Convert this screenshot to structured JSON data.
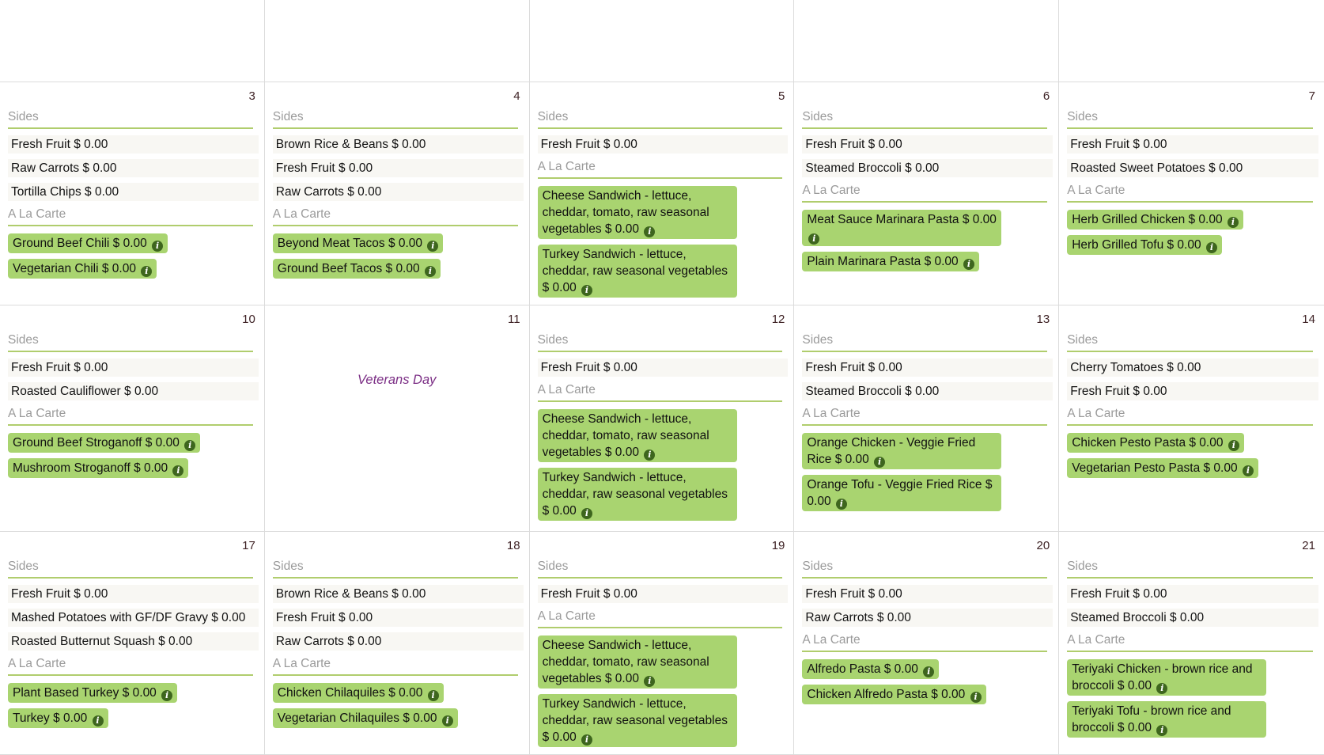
{
  "labels": {
    "sides_header": "Sides",
    "a_la_carte_header": "A La Carte",
    "info_icon_glyph": "i"
  },
  "colors": {
    "grid_line": "#dbdbdb",
    "day_number": "#3f2326",
    "section_header_text": "#9b9b9b",
    "section_underline_green": "#b0cd6d",
    "side_item_background": "#f8f7f3",
    "a_la_carte_pill_green": "#a9d470",
    "info_icon_green": "#3e661e",
    "holiday_text_purple": "#7b2e85"
  },
  "calendar": {
    "leading_empty_cells": 5,
    "weeks": [
      {
        "days": [
          {
            "number": "3",
            "sides": [
              {
                "name": "Fresh Fruit",
                "price": "$ 0.00"
              },
              {
                "name": "Raw Carrots",
                "price": "$ 0.00"
              },
              {
                "name": "Tortilla Chips",
                "price": "$ 0.00"
              }
            ],
            "a_la_carte": [
              {
                "name": "Ground Beef Chili",
                "price": "$ 0.00"
              },
              {
                "name": "Vegetarian Chili",
                "price": "$ 0.00"
              }
            ]
          },
          {
            "number": "4",
            "sides": [
              {
                "name": "Brown Rice & Beans",
                "price": "$ 0.00"
              },
              {
                "name": "Fresh Fruit",
                "price": "$ 0.00"
              },
              {
                "name": "Raw Carrots",
                "price": "$ 0.00"
              }
            ],
            "a_la_carte": [
              {
                "name": "Beyond Meat Tacos",
                "price": "$ 0.00"
              },
              {
                "name": "Ground Beef Tacos",
                "price": "$ 0.00"
              }
            ]
          },
          {
            "number": "5",
            "sides": [
              {
                "name": "Fresh Fruit",
                "price": "$ 0.00"
              }
            ],
            "a_la_carte": [
              {
                "name": "Cheese Sandwich - lettuce, cheddar, tomato, raw seasonal vegetables",
                "price": "$ 0.00"
              },
              {
                "name": "Turkey Sandwich - lettuce, cheddar, raw seasonal vegetables",
                "price": "$ 0.00"
              }
            ]
          },
          {
            "number": "6",
            "sides": [
              {
                "name": "Fresh Fruit",
                "price": "$ 0.00"
              },
              {
                "name": "Steamed Broccoli",
                "price": "$ 0.00"
              }
            ],
            "a_la_carte": [
              {
                "name": "Meat Sauce Marinara Pasta",
                "price": "$ 0.00"
              },
              {
                "name": "Plain Marinara Pasta",
                "price": "$ 0.00"
              }
            ]
          },
          {
            "number": "7",
            "sides": [
              {
                "name": "Fresh Fruit",
                "price": "$ 0.00"
              },
              {
                "name": "Roasted Sweet Potatoes",
                "price": "$ 0.00"
              }
            ],
            "a_la_carte": [
              {
                "name": "Herb Grilled Chicken",
                "price": "$ 0.00"
              },
              {
                "name": "Herb Grilled Tofu",
                "price": "$ 0.00"
              }
            ]
          }
        ]
      },
      {
        "days": [
          {
            "number": "10",
            "sides": [
              {
                "name": "Fresh Fruit",
                "price": "$ 0.00"
              },
              {
                "name": "Roasted Cauliflower",
                "price": "$ 0.00"
              }
            ],
            "a_la_carte": [
              {
                "name": "Ground Beef Stroganoff",
                "price": "$ 0.00"
              },
              {
                "name": "Mushroom Stroganoff",
                "price": "$ 0.00"
              }
            ]
          },
          {
            "number": "11",
            "holiday": "Veterans Day"
          },
          {
            "number": "12",
            "sides": [
              {
                "name": "Fresh Fruit",
                "price": "$ 0.00"
              }
            ],
            "a_la_carte": [
              {
                "name": "Cheese Sandwich - lettuce, cheddar, tomato, raw seasonal vegetables",
                "price": "$ 0.00"
              },
              {
                "name": "Turkey Sandwich - lettuce, cheddar, raw seasonal vegetables",
                "price": "$ 0.00"
              }
            ]
          },
          {
            "number": "13",
            "sides": [
              {
                "name": "Fresh Fruit",
                "price": "$ 0.00"
              },
              {
                "name": "Steamed Broccoli",
                "price": "$ 0.00"
              }
            ],
            "a_la_carte": [
              {
                "name": "Orange Chicken - Veggie Fried Rice",
                "price": "$ 0.00"
              },
              {
                "name": "Orange Tofu - Veggie Fried Rice",
                "price": "$ 0.00"
              }
            ]
          },
          {
            "number": "14",
            "sides": [
              {
                "name": "Cherry Tomatoes",
                "price": "$ 0.00"
              },
              {
                "name": "Fresh Fruit",
                "price": "$ 0.00"
              }
            ],
            "a_la_carte": [
              {
                "name": "Chicken Pesto Pasta",
                "price": "$ 0.00"
              },
              {
                "name": "Vegetarian Pesto Pasta",
                "price": "$ 0.00"
              }
            ]
          }
        ]
      },
      {
        "days": [
          {
            "number": "17",
            "sides": [
              {
                "name": "Fresh Fruit",
                "price": "$ 0.00"
              },
              {
                "name": "Mashed Potatoes with GF/DF Gravy",
                "price": "$ 0.00"
              },
              {
                "name": "Roasted Butternut Squash",
                "price": "$ 0.00"
              }
            ],
            "a_la_carte": [
              {
                "name": "Plant Based Turkey",
                "price": "$ 0.00"
              },
              {
                "name": "Turkey",
                "price": "$ 0.00"
              }
            ]
          },
          {
            "number": "18",
            "sides": [
              {
                "name": "Brown Rice & Beans",
                "price": "$ 0.00"
              },
              {
                "name": "Fresh Fruit",
                "price": "$ 0.00"
              },
              {
                "name": "Raw Carrots",
                "price": "$ 0.00"
              }
            ],
            "a_la_carte": [
              {
                "name": "Chicken Chilaquiles",
                "price": "$ 0.00"
              },
              {
                "name": "Vegetarian Chilaquiles",
                "price": "$ 0.00"
              }
            ]
          },
          {
            "number": "19",
            "sides": [
              {
                "name": "Fresh Fruit",
                "price": "$ 0.00"
              }
            ],
            "a_la_carte": [
              {
                "name": "Cheese Sandwich - lettuce, cheddar, tomato, raw seasonal vegetables",
                "price": "$ 0.00"
              },
              {
                "name": "Turkey Sandwich - lettuce, cheddar, raw seasonal vegetables",
                "price": "$ 0.00"
              }
            ]
          },
          {
            "number": "20",
            "sides": [
              {
                "name": "Fresh Fruit",
                "price": "$ 0.00"
              },
              {
                "name": "Raw Carrots",
                "price": "$ 0.00"
              }
            ],
            "a_la_carte": [
              {
                "name": "Alfredo Pasta",
                "price": "$ 0.00"
              },
              {
                "name": "Chicken Alfredo Pasta",
                "price": "$ 0.00"
              }
            ]
          },
          {
            "number": "21",
            "sides": [
              {
                "name": "Fresh Fruit",
                "price": "$ 0.00"
              },
              {
                "name": "Steamed Broccoli",
                "price": "$ 0.00"
              }
            ],
            "a_la_carte": [
              {
                "name": "Teriyaki Chicken - brown rice and broccoli",
                "price": "$ 0.00"
              },
              {
                "name": "Teriyaki Tofu - brown rice and broccoli",
                "price": "$ 0.00"
              }
            ]
          }
        ]
      }
    ]
  }
}
